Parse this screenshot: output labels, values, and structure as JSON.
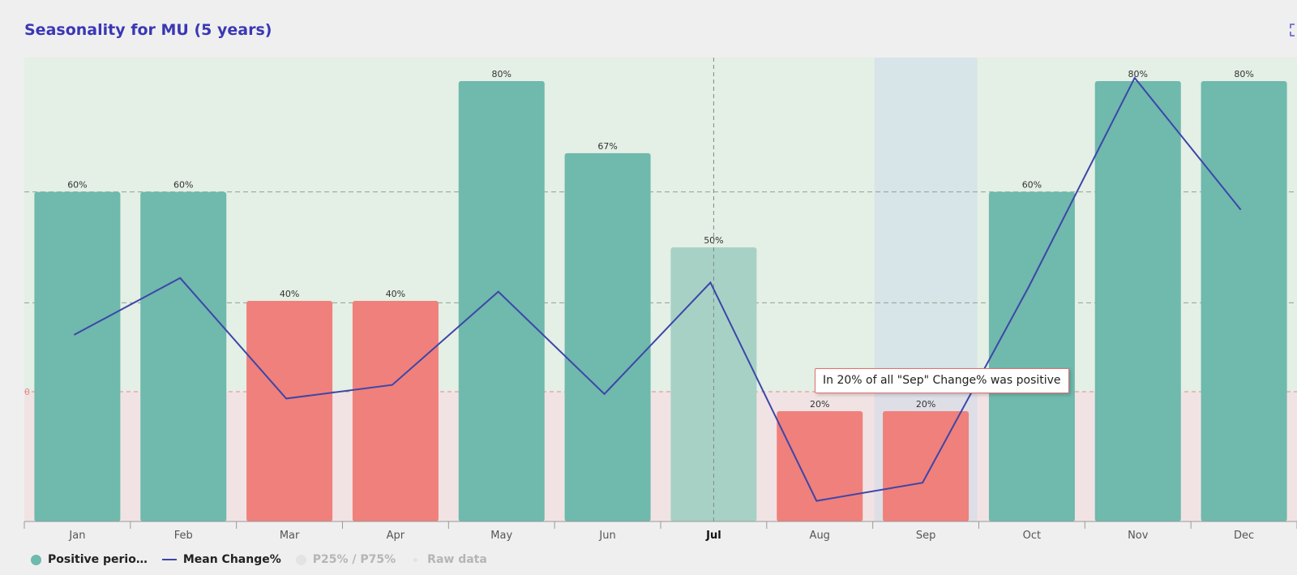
{
  "page": {
    "title": "Seasonality for MU (5 years)",
    "expand_icon": "expand-icon"
  },
  "tooltip": {
    "text": "In 20% of all \"Sep\" Change% was positive"
  },
  "legend": {
    "items": [
      {
        "label": "Positive perio…",
        "symbol": "circle",
        "color": "#6fb9ad",
        "muted": false
      },
      {
        "label": "Mean Change%",
        "symbol": "line",
        "color": "#3d46a8",
        "muted": false
      },
      {
        "label": "P25% / P75%",
        "symbol": "circle",
        "color": "#e3e3e3",
        "muted": true
      },
      {
        "label": "Raw data",
        "symbol": "dot",
        "color": "#e3e3e3",
        "muted": true
      }
    ]
  },
  "chart_data": {
    "type": "bar",
    "title": "Seasonality for MU (5 years)",
    "categories": [
      "Jan",
      "Feb",
      "Mar",
      "Apr",
      "May",
      "Jun",
      "Jul",
      "Aug",
      "Sep",
      "Oct",
      "Nov",
      "Dec"
    ],
    "highlighted_category": "Jul",
    "hovered_category": "Sep",
    "series": [
      {
        "name": "Positive perio…",
        "type": "bar",
        "values": [
          60,
          60,
          40,
          40,
          80,
          67,
          50,
          20,
          20,
          60,
          80,
          80
        ],
        "labels": [
          "60%",
          "60%",
          "40%",
          "40%",
          "80%",
          "67%",
          "50%",
          "20%",
          "20%",
          "60%",
          "80%",
          "80%"
        ]
      },
      {
        "name": "Mean Change%",
        "type": "line",
        "values": [
          2.5,
          5.0,
          -0.3,
          0.3,
          4.4,
          -0.1,
          4.8,
          -4.8,
          -4.0,
          4.6,
          13.8,
          8.0
        ]
      }
    ],
    "y_axis": {
      "zero_label": "0"
    },
    "colors": {
      "positive": "#6fb9ad",
      "negative": "#f0807b",
      "neutral": "#a8d1c6",
      "line": "#3d46a8",
      "zero_line": "#e88a8a"
    }
  }
}
